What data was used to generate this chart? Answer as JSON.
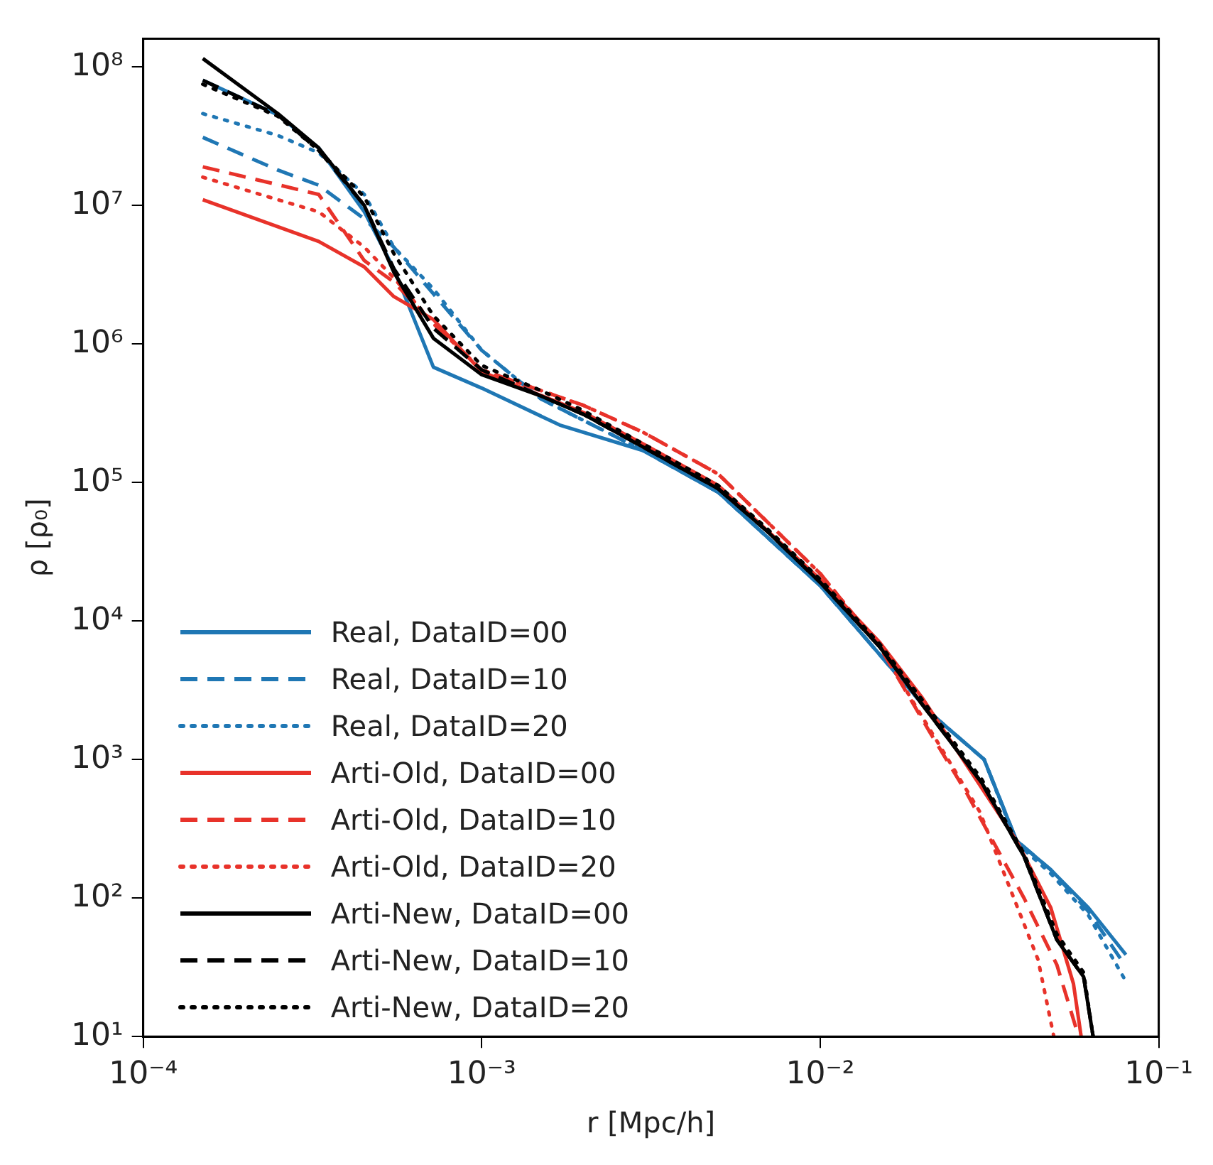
{
  "chart_data": {
    "type": "line",
    "xlabel": "r [Mpc/h]",
    "ylabel": "ρ [ρ₀]",
    "log": "xy",
    "grid": false,
    "legend": "bottom left",
    "marker": "none",
    "xlim": [
      0.0001,
      0.1
    ],
    "ylim": [
      10,
      160000000
    ],
    "xticks": [
      {
        "value": 0.0001,
        "label": "10⁻⁴"
      },
      {
        "value": 0.001,
        "label": "10⁻³"
      },
      {
        "value": 0.01,
        "label": "10⁻²"
      },
      {
        "value": 0.1,
        "label": "10⁻¹"
      }
    ],
    "yticks": [
      {
        "value": 10,
        "label": "10¹"
      },
      {
        "value": 100,
        "label": "10²"
      },
      {
        "value": 1000,
        "label": "10³"
      },
      {
        "value": 10000,
        "label": "10⁴"
      },
      {
        "value": 100000,
        "label": "10⁵"
      },
      {
        "value": 1000000,
        "label": "10⁶"
      },
      {
        "value": 10000000,
        "label": "10⁷"
      },
      {
        "value": 100000000,
        "label": "10⁸"
      }
    ],
    "series": [
      {
        "name": "Real, DataID=00",
        "color": "#1f77b4",
        "line_style": "solid",
        "x": [
          0.00015,
          0.00025,
          0.00033,
          0.00045,
          0.00055,
          0.00072,
          0.001,
          0.0017,
          0.003,
          0.005,
          0.01,
          0.021,
          0.0305,
          0.038,
          0.048,
          0.062,
          0.08
        ],
        "values": [
          80000000,
          45000000,
          26000000,
          9000000,
          3500000,
          680000,
          480000,
          260000,
          170000,
          85000,
          18000,
          2200,
          1000,
          260,
          160,
          85,
          39
        ]
      },
      {
        "name": "Real, DataID=10",
        "color": "#1f77b4",
        "line_style": "dashed",
        "x": [
          0.00015,
          0.00025,
          0.00033,
          0.00045,
          0.00055,
          0.00072,
          0.001,
          0.0015,
          0.003,
          0.005,
          0.01,
          0.021,
          0.0305,
          0.038,
          0.048,
          0.062,
          0.08
        ],
        "values": [
          31000000,
          18000000,
          14000000,
          8000000,
          5000000,
          2300000,
          900000,
          400000,
          170000,
          85000,
          18000,
          2200,
          1000,
          260,
          160,
          80,
          32
        ]
      },
      {
        "name": "Real, DataID=20",
        "color": "#1f77b4",
        "line_style": "dotted",
        "x": [
          0.00015,
          0.00025,
          0.00033,
          0.00045,
          0.00055,
          0.00072,
          0.001,
          0.0015,
          0.003,
          0.005,
          0.01,
          0.021,
          0.0305,
          0.038,
          0.048,
          0.062,
          0.08
        ],
        "values": [
          46000000,
          32000000,
          24000000,
          12000000,
          5000000,
          2500000,
          900000,
          400000,
          170000,
          85000,
          18000,
          2200,
          1000,
          250,
          150,
          75,
          25
        ]
      },
      {
        "name": "Arti-Old, DataID=00",
        "color": "#e8322a",
        "line_style": "solid",
        "x": [
          0.00015,
          0.00033,
          0.00045,
          0.00055,
          0.00072,
          0.001,
          0.002,
          0.003,
          0.005,
          0.01,
          0.015,
          0.02,
          0.038,
          0.048,
          0.056,
          0.059
        ],
        "values": [
          11000000,
          5500000,
          3600000,
          2200000,
          1500000,
          630000,
          320000,
          190000,
          95000,
          20000,
          7000,
          2800,
          260,
          85,
          24,
          10
        ]
      },
      {
        "name": "Arti-Old, DataID=10",
        "color": "#e8322a",
        "line_style": "dashed",
        "x": [
          0.00015,
          0.00033,
          0.00045,
          0.00055,
          0.00072,
          0.001,
          0.002,
          0.003,
          0.005,
          0.01,
          0.015,
          0.021,
          0.027,
          0.04,
          0.05,
          0.058
        ],
        "values": [
          19000000,
          12000000,
          4000000,
          2800000,
          1400000,
          650000,
          360000,
          230000,
          115000,
          22000,
          6500,
          1600,
          580,
          100,
          33,
          10
        ]
      },
      {
        "name": "Arti-Old, DataID=20",
        "color": "#e8322a",
        "line_style": "dotted",
        "x": [
          0.00015,
          0.00025,
          0.00033,
          0.00045,
          0.00055,
          0.00072,
          0.001,
          0.002,
          0.003,
          0.005,
          0.01,
          0.015,
          0.0296,
          0.036,
          0.044,
          0.049
        ],
        "values": [
          16000000,
          11000000,
          9000000,
          5000000,
          3000000,
          1400000,
          650000,
          360000,
          230000,
          115000,
          22000,
          6500,
          420,
          125,
          36,
          10
        ]
      },
      {
        "name": "Arti-New, DataID=00",
        "color": "#000000",
        "line_style": "solid",
        "x": [
          0.00015,
          0.00025,
          0.00033,
          0.00045,
          0.00055,
          0.00072,
          0.001,
          0.0015,
          0.002,
          0.003,
          0.005,
          0.007,
          0.01,
          0.015,
          0.02,
          0.03,
          0.04,
          0.05,
          0.06,
          0.064
        ],
        "values": [
          115000000,
          46000000,
          26000000,
          10000000,
          3300000,
          1100000,
          600000,
          420000,
          310000,
          180000,
          90000,
          44000,
          19000,
          6500,
          2500,
          680,
          200,
          50,
          27,
          10
        ]
      },
      {
        "name": "Arti-New, DataID=10",
        "color": "#000000",
        "line_style": "dashed",
        "x": [
          0.00015,
          0.00025,
          0.00033,
          0.00045,
          0.00055,
          0.00072,
          0.001,
          0.0015,
          0.002,
          0.003,
          0.005,
          0.007,
          0.01,
          0.015,
          0.02,
          0.03,
          0.04,
          0.05,
          0.06,
          0.064
        ],
        "values": [
          80000000,
          45000000,
          25000000,
          10000000,
          3500000,
          1300000,
          650000,
          420000,
          310000,
          180000,
          90000,
          44000,
          19000,
          6500,
          2500,
          680,
          200,
          50,
          27,
          10
        ]
      },
      {
        "name": "Arti-New, DataID=20",
        "color": "#000000",
        "line_style": "dotted",
        "x": [
          0.00015,
          0.00025,
          0.00033,
          0.00045,
          0.00055,
          0.00072,
          0.001,
          0.0015,
          0.002,
          0.003,
          0.005,
          0.007,
          0.01,
          0.015,
          0.02,
          0.03,
          0.04,
          0.05,
          0.06,
          0.064
        ],
        "values": [
          75000000,
          44000000,
          25000000,
          11500000,
          4500000,
          1600000,
          700000,
          460000,
          330000,
          190000,
          95000,
          46000,
          20000,
          6800,
          2700,
          720,
          210,
          55,
          29,
          10
        ]
      }
    ]
  }
}
